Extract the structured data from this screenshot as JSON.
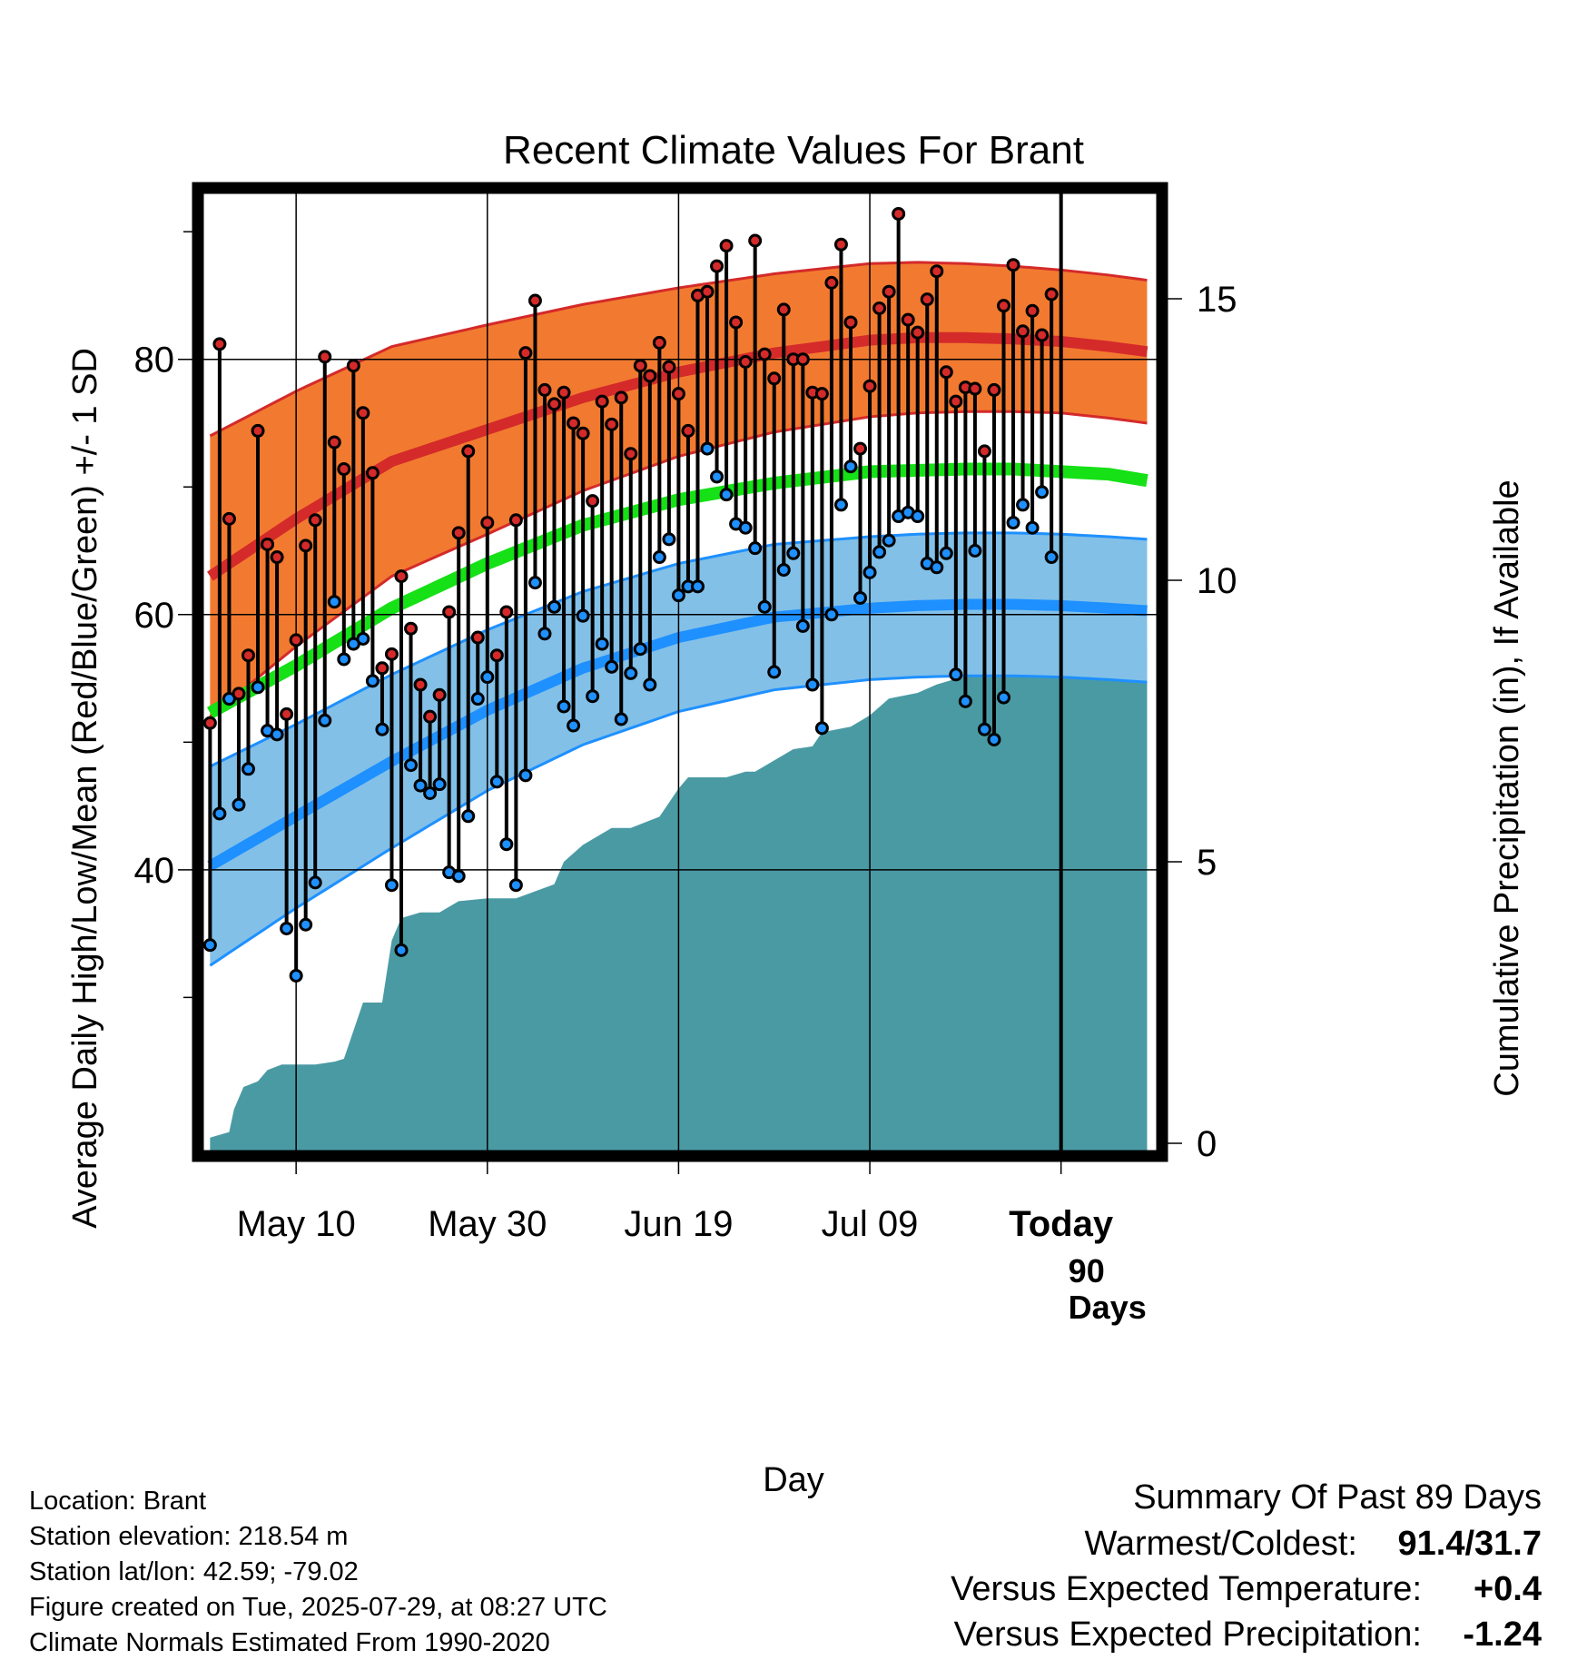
{
  "chart_data": {
    "type": "line",
    "title": "Recent Climate Values For Brant",
    "xlabel": "Day",
    "ylabel": "Average Daily High/Low/Mean (Red/Blue/Green) +/- 1 SD",
    "ylabel_right": "Cumulative Precipitation (in), If Available",
    "x_ticks": [
      "May 10",
      "May 30",
      "Jun 19",
      "Jul 09",
      "Today"
    ],
    "x_tick_days": [
      10,
      30,
      50,
      70,
      90
    ],
    "y_ticks": [
      40,
      60,
      80
    ],
    "ylim": [
      18,
      93
    ],
    "y2_ticks": [
      0,
      5,
      10,
      15
    ],
    "y2lim": [
      0,
      17
    ],
    "xlim": [
      0.3,
      100
    ],
    "days_label": "90 Days",
    "grid": true,
    "colors": {
      "high_band": "#f27a30",
      "high_line": "#d42a2a",
      "low_band": "#82c0e8",
      "low_line": "#1e90ff",
      "mean_line": "#16e016",
      "precip": "#4a9aa4",
      "dot_high": "#d42a2a",
      "dot_low": "#1e90ff"
    },
    "normal_high": {
      "days": [
        1,
        10,
        20,
        30,
        40,
        50,
        60,
        70,
        75,
        80,
        85,
        90,
        95,
        99
      ],
      "mean": [
        63,
        67.5,
        72,
        74.5,
        77,
        79,
        80.5,
        81.5,
        81.7,
        81.7,
        81.6,
        81.4,
        81,
        80.6
      ],
      "sd": [
        11,
        10,
        9,
        8.2,
        7.3,
        6.6,
        6.2,
        6,
        5.9,
        5.8,
        5.7,
        5.6,
        5.6,
        5.6
      ]
    },
    "normal_low": {
      "days": [
        1,
        10,
        20,
        30,
        40,
        50,
        60,
        70,
        75,
        80,
        85,
        90,
        95,
        99
      ],
      "mean": [
        40.3,
        44.2,
        48.5,
        52.5,
        55.8,
        58.2,
        59.8,
        60.5,
        60.7,
        60.8,
        60.8,
        60.7,
        60.5,
        60.3
      ],
      "sd": [
        7.8,
        7.2,
        6.8,
        6.3,
        6,
        5.8,
        5.7,
        5.6,
        5.6,
        5.6,
        5.6,
        5.6,
        5.6,
        5.6
      ]
    },
    "normal_mean": {
      "days": [
        1,
        10,
        20,
        30,
        40,
        50,
        60,
        70,
        75,
        80,
        85,
        90,
        95,
        99
      ],
      "values": [
        52.3,
        56,
        60.5,
        64,
        67,
        69,
        70.3,
        71.2,
        71.3,
        71.4,
        71.4,
        71.2,
        71,
        70.5
      ]
    },
    "daily_high": [
      51.5,
      81.2,
      67.5,
      53.8,
      56.8,
      74.4,
      65.5,
      64.5,
      52.2,
      58.0,
      65.4,
      67.4,
      80.2,
      73.5,
      71.4,
      79.5,
      75.8,
      71.1,
      55.8,
      56.9,
      63.0,
      58.9,
      54.5,
      52.0,
      53.7,
      60.2,
      66.4,
      72.8,
      58.2,
      67.2,
      56.8,
      60.2,
      67.4,
      80.5,
      84.6,
      77.6,
      76.5,
      77.4,
      75.0,
      74.2,
      68.9,
      76.7,
      74.9,
      77.0,
      72.6,
      79.5,
      78.7,
      81.3,
      79.4,
      77.3,
      74.4,
      85.0,
      85.3,
      87.3,
      88.9,
      82.9,
      79.8,
      89.3,
      80.4,
      78.5,
      83.9,
      80.0,
      80.0,
      77.4,
      77.3,
      86.0,
      89.0,
      82.9,
      73.0,
      77.9,
      84.0,
      85.3,
      91.4,
      83.1,
      82.1,
      84.7,
      86.9,
      79.0,
      76.7,
      77.8,
      77.7,
      72.8,
      77.6,
      84.2,
      87.4,
      82.2,
      83.8,
      81.9,
      85.1
    ],
    "daily_low": [
      34.1,
      44.4,
      53.4,
      45.1,
      47.9,
      54.3,
      50.9,
      50.6,
      35.4,
      31.7,
      35.7,
      39.0,
      51.7,
      61.0,
      56.5,
      57.7,
      58.1,
      54.8,
      51.0,
      38.8,
      33.7,
      48.2,
      46.6,
      46.0,
      46.7,
      39.8,
      39.5,
      44.2,
      53.4,
      55.1,
      46.9,
      42.0,
      38.8,
      47.4,
      62.5,
      58.5,
      60.6,
      52.8,
      51.3,
      59.9,
      53.6,
      57.7,
      55.9,
      51.8,
      55.4,
      57.3,
      54.5,
      64.5,
      65.9,
      61.5,
      62.2,
      62.2,
      73.0,
      70.8,
      69.4,
      67.1,
      66.8,
      65.2,
      60.6,
      55.5,
      63.5,
      64.8,
      59.1,
      54.5,
      51.1,
      60.0,
      68.6,
      71.6,
      61.3,
      63.3,
      64.9,
      65.8,
      67.7,
      68.0,
      67.7,
      64.0,
      63.7,
      64.8,
      55.3,
      53.2,
      65.0,
      51.0,
      50.2,
      53.5,
      67.2,
      68.6,
      66.8,
      69.6,
      64.5
    ],
    "cumulative_precip": {
      "days": [
        1,
        3,
        3.5,
        4.5,
        6,
        7,
        8.5,
        10,
        12,
        14,
        15,
        17,
        19,
        20,
        21,
        23,
        24,
        25,
        27,
        30,
        33,
        37,
        38,
        40,
        43,
        45,
        48,
        50,
        51,
        55,
        57,
        58,
        60,
        62,
        64,
        65,
        68,
        69,
        70,
        72,
        75,
        77,
        80,
        81,
        85,
        88,
        90,
        94,
        99
      ],
      "values": [
        0.1,
        0.2,
        0.6,
        1.0,
        1.1,
        1.3,
        1.4,
        1.4,
        1.4,
        1.45,
        1.5,
        2.5,
        2.5,
        3.6,
        4.0,
        4.1,
        4.1,
        4.1,
        4.3,
        4.35,
        4.35,
        4.6,
        5.0,
        5.3,
        5.6,
        5.6,
        5.8,
        6.3,
        6.5,
        6.5,
        6.6,
        6.6,
        6.8,
        7.0,
        7.05,
        7.3,
        7.4,
        7.5,
        7.6,
        7.9,
        8.0,
        8.15,
        8.3,
        8.4,
        8.6,
        8.75,
        8.85,
        8.85,
        8.85
      ]
    }
  },
  "footer": {
    "location": "Location: Brant",
    "elevation": "Station elevation: 218.54 m",
    "latlon": "Station lat/lon: 42.59; -79.02",
    "created": "Figure created on Tue, 2025-07-29, at 08:27 UTC",
    "normals": "Climate Normals Estimated From 1990-2020"
  },
  "summary": {
    "heading": "Summary Of Past 89 Days",
    "warm_cold_label": "Warmest/Coldest:",
    "warm_cold_value": "91.4/31.7",
    "temp_label": "Versus Expected Temperature:",
    "temp_value": "+0.4",
    "temp_color": "#d42a2a",
    "precip_label": "Versus Expected Precipitation:",
    "precip_value": "-1.24",
    "precip_color": "#a0522d"
  }
}
